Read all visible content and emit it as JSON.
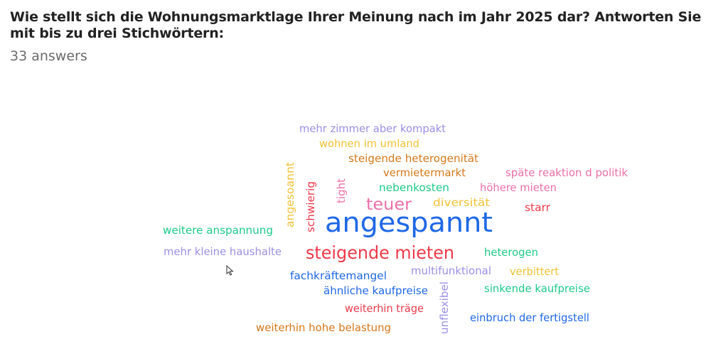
{
  "question": "Wie stellt sich die Wohnungsmarktlage Ihrer Meinung nach im Jahr 2025 dar? Antworten Sie mit bis zu drei Stichwörtern:",
  "answer_count": "33 answers",
  "colors": {
    "purple": "#9b8fe6",
    "yellow": "#f0c234",
    "orange": "#d4781a",
    "pink": "#ec6fa8",
    "green": "#1ec98a",
    "blue": "#1f68e6",
    "red": "#ee3a4a"
  },
  "chart_data": {
    "type": "word-cloud",
    "words": [
      {
        "text": "angespannt",
        "weight": 5,
        "color": "blue",
        "rotate": 0
      },
      {
        "text": "steigende mieten",
        "weight": 3,
        "color": "red",
        "rotate": 0
      },
      {
        "text": "teuer",
        "weight": 2,
        "color": "pink",
        "rotate": 0
      },
      {
        "text": "mehr zimmer aber kompakt",
        "weight": 1,
        "color": "purple",
        "rotate": 0
      },
      {
        "text": "wohnen im umland",
        "weight": 1,
        "color": "yellow",
        "rotate": 0
      },
      {
        "text": "steigende heterogenität",
        "weight": 1,
        "color": "orange",
        "rotate": 0
      },
      {
        "text": "vermietermarkt",
        "weight": 1,
        "color": "orange",
        "rotate": 0
      },
      {
        "text": "späte reaktion d politik",
        "weight": 1,
        "color": "pink",
        "rotate": 0
      },
      {
        "text": "nebenkosten",
        "weight": 1,
        "color": "green",
        "rotate": 0
      },
      {
        "text": "höhere mieten",
        "weight": 1,
        "color": "pink",
        "rotate": 0
      },
      {
        "text": "diversität",
        "weight": 1,
        "color": "yellow",
        "rotate": 0
      },
      {
        "text": "starr",
        "weight": 1,
        "color": "red",
        "rotate": 0
      },
      {
        "text": "weitere anspannung",
        "weight": 1,
        "color": "green",
        "rotate": 0
      },
      {
        "text": "mehr kleine haushalte",
        "weight": 1,
        "color": "purple",
        "rotate": 0
      },
      {
        "text": "heterogen",
        "weight": 1,
        "color": "green",
        "rotate": 0
      },
      {
        "text": "fachkräftemangel",
        "weight": 1,
        "color": "blue",
        "rotate": 0
      },
      {
        "text": "multifunktional",
        "weight": 1,
        "color": "purple",
        "rotate": 0
      },
      {
        "text": "verbittert",
        "weight": 1,
        "color": "yellow",
        "rotate": 0
      },
      {
        "text": "ähnliche kaufpreise",
        "weight": 1,
        "color": "blue",
        "rotate": 0
      },
      {
        "text": "sinkende kaufpreise",
        "weight": 1,
        "color": "green",
        "rotate": 0
      },
      {
        "text": "weiterhin träge",
        "weight": 1,
        "color": "red",
        "rotate": 0
      },
      {
        "text": "einbruch der fertigstell",
        "weight": 1,
        "color": "blue",
        "rotate": 0
      },
      {
        "text": "weiterhin hohe belastung",
        "weight": 1,
        "color": "orange",
        "rotate": 0
      },
      {
        "text": "angesoannt",
        "weight": 1,
        "color": "yellow",
        "rotate": -90
      },
      {
        "text": "schwierig",
        "weight": 1,
        "color": "red",
        "rotate": -90
      },
      {
        "text": "tight",
        "weight": 1,
        "color": "pink",
        "rotate": -90
      },
      {
        "text": "unflexibel",
        "weight": 1,
        "color": "purple",
        "rotate": -90
      }
    ]
  }
}
